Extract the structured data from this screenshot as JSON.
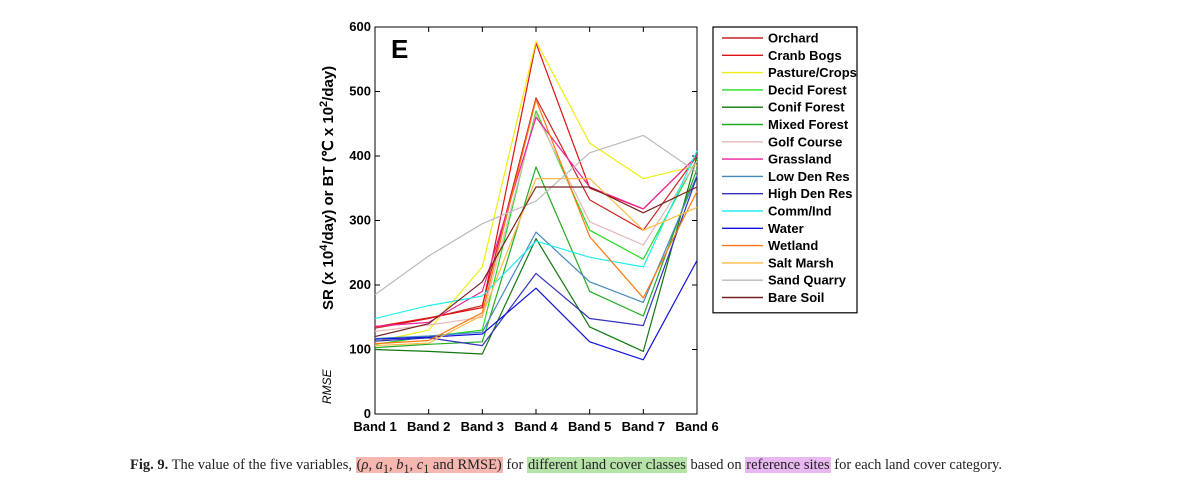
{
  "chart_data": {
    "type": "line",
    "panel_label": "E",
    "ylabel": "SR (x 10^4/day) or BT (℃ x 10^2/day)",
    "ylabel_parts": {
      "a": "SR (x 10",
      "a_sup": "4",
      "b": "/day) or BT (℃ x 10",
      "b_sup": "2",
      "c": "/day)"
    },
    "annotation": "RMSE",
    "ylim": [
      0,
      600
    ],
    "yticks": [
      0,
      100,
      200,
      300,
      400,
      500,
      600
    ],
    "categories": [
      "Band 1",
      "Band 2",
      "Band 3",
      "Band 4",
      "Band 5",
      "Band 7",
      "Band 6"
    ],
    "legend_position": "right-outside",
    "grid": false,
    "series": [
      {
        "name": "Orchard",
        "color": "#cc2222",
        "values": [
          133,
          148,
          168,
          490,
          332,
          285,
          400
        ]
      },
      {
        "name": "Cranb Bogs",
        "color": "#dd1111",
        "values": [
          135,
          149,
          165,
          575,
          350,
          318,
          400
        ]
      },
      {
        "name": "Pasture/Crops",
        "color": "#eeee11",
        "values": [
          112,
          130,
          228,
          578,
          420,
          365,
          385
        ]
      },
      {
        "name": "Decid Forest",
        "color": "#22dd22",
        "values": [
          108,
          120,
          130,
          470,
          285,
          240,
          395
        ]
      },
      {
        "name": "Conif Forest",
        "color": "#117711",
        "values": [
          100,
          97,
          93,
          272,
          135,
          97,
          400
        ]
      },
      {
        "name": "Mixed Forest",
        "color": "#22aa22",
        "values": [
          103,
          108,
          112,
          383,
          190,
          152,
          380
        ]
      },
      {
        "name": "Golf Course",
        "color": "#e8b8b8",
        "values": [
          128,
          138,
          150,
          465,
          298,
          262,
          392
        ]
      },
      {
        "name": "Grassland",
        "color": "#ee2299",
        "values": [
          136,
          142,
          190,
          460,
          352,
          318,
          400
        ]
      },
      {
        "name": "Low Den Res",
        "color": "#4488bb",
        "values": [
          117,
          121,
          127,
          282,
          205,
          173,
          370
        ]
      },
      {
        "name": "High Den Res",
        "color": "#3333bb",
        "values": [
          113,
          118,
          106,
          218,
          148,
          137,
          368
        ]
      },
      {
        "name": "Comm/Ind",
        "color": "#22eeee",
        "values": [
          148,
          168,
          183,
          268,
          243,
          228,
          408
        ]
      },
      {
        "name": "Water",
        "color": "#1111dd",
        "values": [
          116,
          119,
          124,
          195,
          112,
          84,
          238
        ]
      },
      {
        "name": "Wetland",
        "color": "#ff7711",
        "values": [
          109,
          114,
          157,
          487,
          275,
          180,
          345
        ]
      },
      {
        "name": "Salt Marsh",
        "color": "#ffbb44",
        "values": [
          106,
          110,
          153,
          365,
          365,
          285,
          320
        ]
      },
      {
        "name": "Sand Quarry",
        "color": "#bbbbbb",
        "values": [
          185,
          245,
          295,
          330,
          405,
          432,
          375
        ]
      },
      {
        "name": "Bare Soil",
        "color": "#772222",
        "values": [
          120,
          140,
          205,
          352,
          352,
          312,
          352
        ]
      }
    ]
  },
  "caption": {
    "fig_no": "Fig. 9.",
    "pre": " The value of the five variables, ",
    "hl1_open": "(",
    "hl1_rho": "ρ",
    "hl1_sep1": ", ",
    "hl1_a": "a",
    "hl1_a_sub": "1",
    "hl1_sep2": ", ",
    "hl1_b": "b",
    "hl1_b_sub": "1",
    "hl1_sep3": ", ",
    "hl1_c": "c",
    "hl1_c_sub": "1",
    "hl1_close": " and RMSE)",
    "mid1": " for ",
    "hl2": "different land cover classes",
    "mid2": " based on ",
    "hl3": "reference sites",
    "post": " for each land cover category."
  }
}
